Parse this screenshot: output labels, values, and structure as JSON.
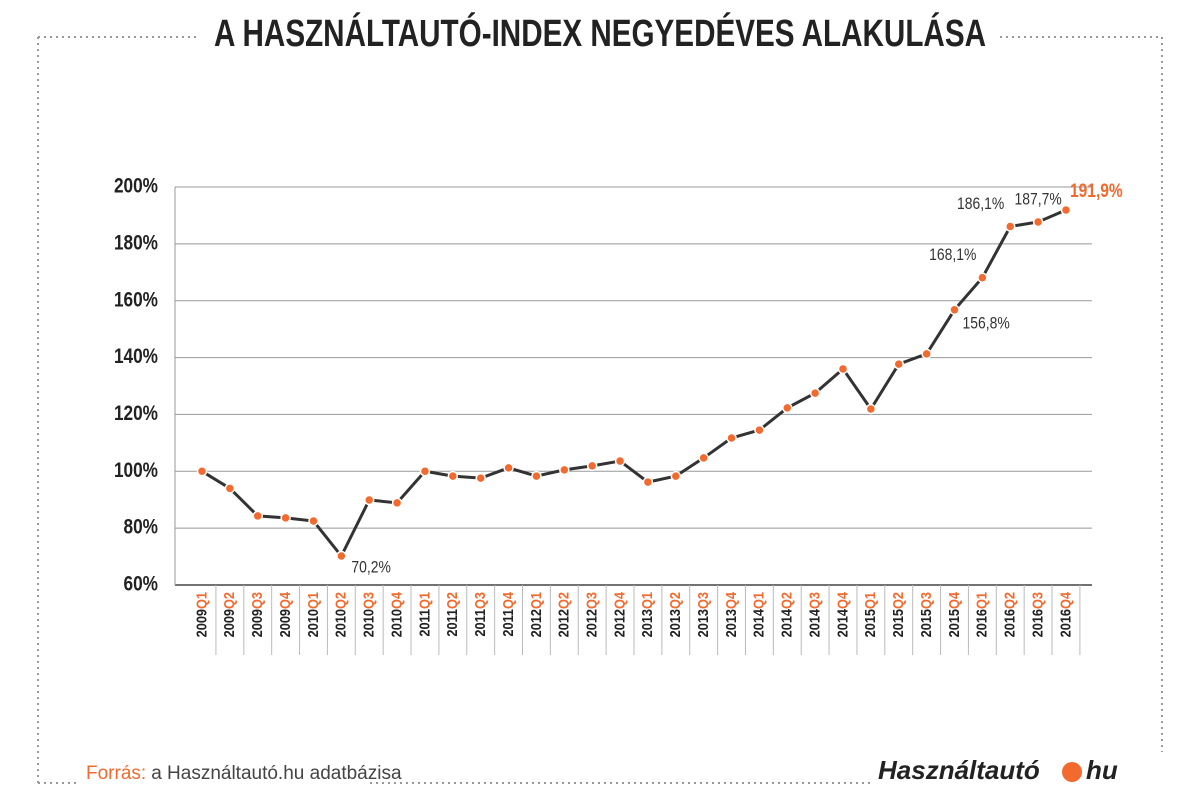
{
  "chart_data": {
    "type": "line",
    "title": "A HASZNÁLTAUTÓ-INDEX NEGYEDÉVES ALAKULÁSA",
    "categories": [
      "2009Q1",
      "2009Q2",
      "2009Q3",
      "2009Q4",
      "2010Q1",
      "2010Q2",
      "2010Q3",
      "2010Q4",
      "2011Q1",
      "2011Q2",
      "2011Q3",
      "2011Q4",
      "2012Q1",
      "2012Q2",
      "2012Q3",
      "2012Q4",
      "2013Q1",
      "2013Q2",
      "2013Q3",
      "2013Q4",
      "2014Q1",
      "2014Q2",
      "2014Q3",
      "2014Q4",
      "2015Q1",
      "2015Q2",
      "2015Q3",
      "2015Q4",
      "2016Q1",
      "2016Q2",
      "2016Q3",
      "2016Q4"
    ],
    "values": [
      100,
      94,
      84.3,
      83.6,
      82.5,
      70.2,
      89.9,
      88.9,
      100,
      98.3,
      97.6,
      101.2,
      98.3,
      100.5,
      101.9,
      103.6,
      96.2,
      98.3,
      104.7,
      111.7,
      114.5,
      122.3,
      127.5,
      136,
      121.9,
      137.7,
      141.3,
      156.8,
      168.1,
      186.1,
      187.7,
      191.9
    ],
    "value_labels": [
      null,
      null,
      null,
      null,
      null,
      "70,2%",
      null,
      null,
      null,
      null,
      null,
      null,
      null,
      null,
      null,
      null,
      null,
      null,
      null,
      null,
      null,
      null,
      null,
      null,
      null,
      null,
      null,
      "156,8%",
      "168,1%",
      "186,1%",
      "187,7%",
      "191,9%"
    ],
    "line_color": "#333333",
    "marker_color": "#f26a2e",
    "highlight_color": "#f26a2e",
    "ylim": [
      60,
      200
    ],
    "yticks": [
      {
        "value": 60,
        "label": "60%"
      },
      {
        "value": 80,
        "label": "80%"
      },
      {
        "value": 100,
        "label": "100%"
      },
      {
        "value": 120,
        "label": "120%"
      },
      {
        "value": 140,
        "label": "140%"
      },
      {
        "value": 160,
        "label": "160%"
      },
      {
        "value": 180,
        "label": "180%"
      },
      {
        "value": 200,
        "label": "200%"
      }
    ],
    "grid": true,
    "source": {
      "label": "Forrás:",
      "text": "a Használtautó.hu adatbázisa"
    },
    "logo": {
      "name": "Használtautó",
      "tld": "hu"
    }
  }
}
